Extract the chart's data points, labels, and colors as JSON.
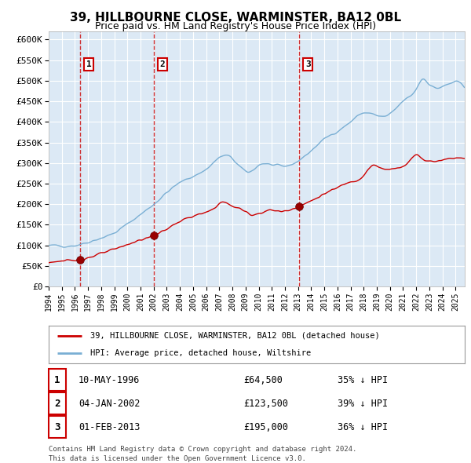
{
  "title": "39, HILLBOURNE CLOSE, WARMINSTER, BA12 0BL",
  "subtitle": "Price paid vs. HM Land Registry's House Price Index (HPI)",
  "legend_property": "39, HILLBOURNE CLOSE, WARMINSTER, BA12 0BL (detached house)",
  "legend_hpi": "HPI: Average price, detached house, Wiltshire",
  "footer1": "Contains HM Land Registry data © Crown copyright and database right 2024.",
  "footer2": "This data is licensed under the Open Government Licence v3.0.",
  "sales": [
    {
      "label": "1",
      "date": "10-MAY-1996",
      "price": 64500,
      "pct": "35% ↓ HPI"
    },
    {
      "label": "2",
      "date": "04-JAN-2002",
      "price": 123500,
      "pct": "39% ↓ HPI"
    },
    {
      "label": "3",
      "date": "01-FEB-2013",
      "price": 195000,
      "pct": "36% ↓ HPI"
    }
  ],
  "sale_dates_decimal": [
    1996.37,
    2002.01,
    2013.08
  ],
  "sale_prices": [
    64500,
    123500,
    195000
  ],
  "property_color": "#cc0000",
  "hpi_color": "#7aafd4",
  "background_color": "#dce9f5",
  "plot_bg_color": "#dce9f5",
  "grid_color": "#ffffff",
  "vline_color": "#cc0000",
  "ylim": [
    0,
    620000
  ],
  "yticks": [
    0,
    50000,
    100000,
    150000,
    200000,
    250000,
    300000,
    350000,
    400000,
    450000,
    500000,
    550000,
    600000
  ],
  "xlim_start": 1994.0,
  "xlim_end": 2025.7
}
